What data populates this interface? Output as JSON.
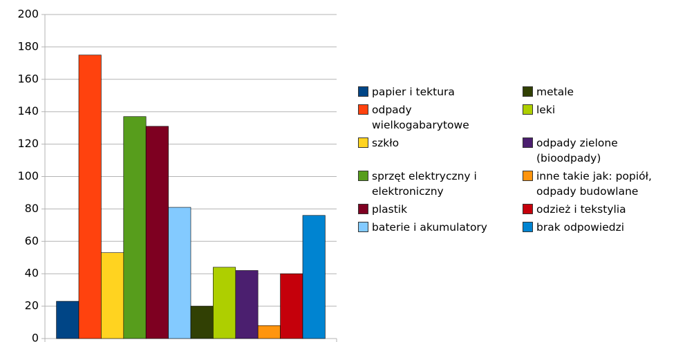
{
  "chart_data": {
    "type": "bar",
    "series": [
      {
        "name": "papier i tektura",
        "color": "#004586",
        "values": [
          23
        ]
      },
      {
        "name": "odpady wielkogabarytowe",
        "color": "#ff420e",
        "values": [
          175
        ]
      },
      {
        "name": "szkło",
        "color": "#ffd320",
        "values": [
          53
        ]
      },
      {
        "name": "sprzęt elektryczny i elektroniczny",
        "color": "#579d1c",
        "values": [
          137
        ]
      },
      {
        "name": "plastik",
        "color": "#7e0021",
        "values": [
          131
        ]
      },
      {
        "name": "baterie i akumulatory",
        "color": "#83caff",
        "values": [
          81
        ]
      },
      {
        "name": "metale",
        "color": "#314004",
        "values": [
          20
        ]
      },
      {
        "name": "leki",
        "color": "#aecf00",
        "values": [
          44
        ]
      },
      {
        "name": "odpady zielone (bioodpady)",
        "color": "#4b1f6f",
        "values": [
          42
        ]
      },
      {
        "name": "inne takie jak: popiół, odpady budowlane",
        "color": "#ff950e",
        "values": [
          8
        ]
      },
      {
        "name": "odzież i tekstylia",
        "color": "#c5000b",
        "values": [
          40
        ]
      },
      {
        "name": "brak odpowiedzi",
        "color": "#0084d1",
        "values": [
          76
        ]
      }
    ],
    "ylim": [
      0,
      200
    ],
    "yticks": [
      0,
      20,
      40,
      60,
      80,
      100,
      120,
      140,
      160,
      180,
      200
    ],
    "grid": true
  }
}
